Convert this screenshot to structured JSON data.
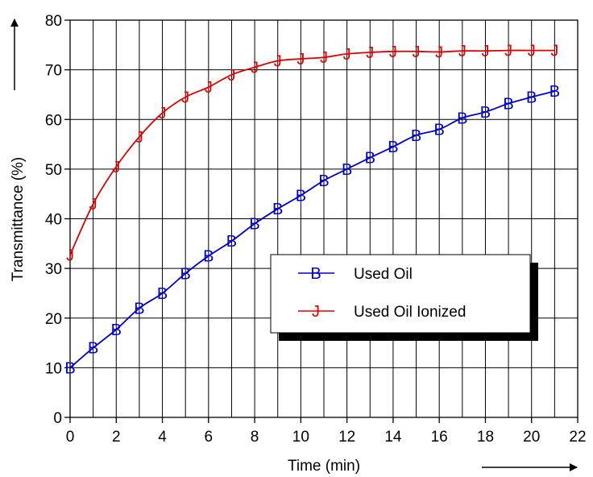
{
  "chart_data": {
    "type": "line",
    "xlabel": "Time (min)",
    "ylabel": "Transmittance (%)",
    "xlim": [
      0,
      22
    ],
    "ylim": [
      0,
      80
    ],
    "x_ticks": [
      "0",
      "2",
      "4",
      "6",
      "8",
      "10",
      "12",
      "14",
      "16",
      "18",
      "20",
      "22"
    ],
    "y_ticks": [
      "0",
      "10",
      "20",
      "30",
      "40",
      "50",
      "60",
      "70",
      "80"
    ],
    "grid": true,
    "legend_position": "right-center",
    "series": [
      {
        "name": "Used Oil",
        "marker": "B",
        "color": "#0000cc",
        "x": [
          0,
          1,
          2,
          3,
          4,
          5,
          6,
          7,
          8,
          9,
          10,
          11,
          12,
          13,
          14,
          15,
          16,
          17,
          18,
          19,
          20,
          21
        ],
        "values": [
          10,
          14,
          17.7,
          22,
          25,
          29,
          32.5,
          35.5,
          39,
          42,
          44.7,
          47.7,
          50,
          52.3,
          54.5,
          56.8,
          58,
          60.3,
          61.5,
          63.2,
          64.5,
          65.7
        ]
      },
      {
        "name": "Used Oil Ionized",
        "marker": "J",
        "color": "#dd0000",
        "x": [
          0,
          1,
          2,
          3,
          4,
          5,
          6,
          7,
          8,
          9,
          10,
          11,
          12,
          13,
          14,
          15,
          16,
          17,
          18,
          19,
          20,
          21
        ],
        "values": [
          32.7,
          43,
          50.5,
          56.5,
          61.3,
          64.5,
          66.5,
          69,
          70.5,
          71.8,
          72.2,
          72.5,
          73.2,
          73.5,
          73.7,
          73.7,
          73.6,
          73.8,
          73.8,
          73.9,
          73.9,
          73.9
        ]
      }
    ]
  }
}
